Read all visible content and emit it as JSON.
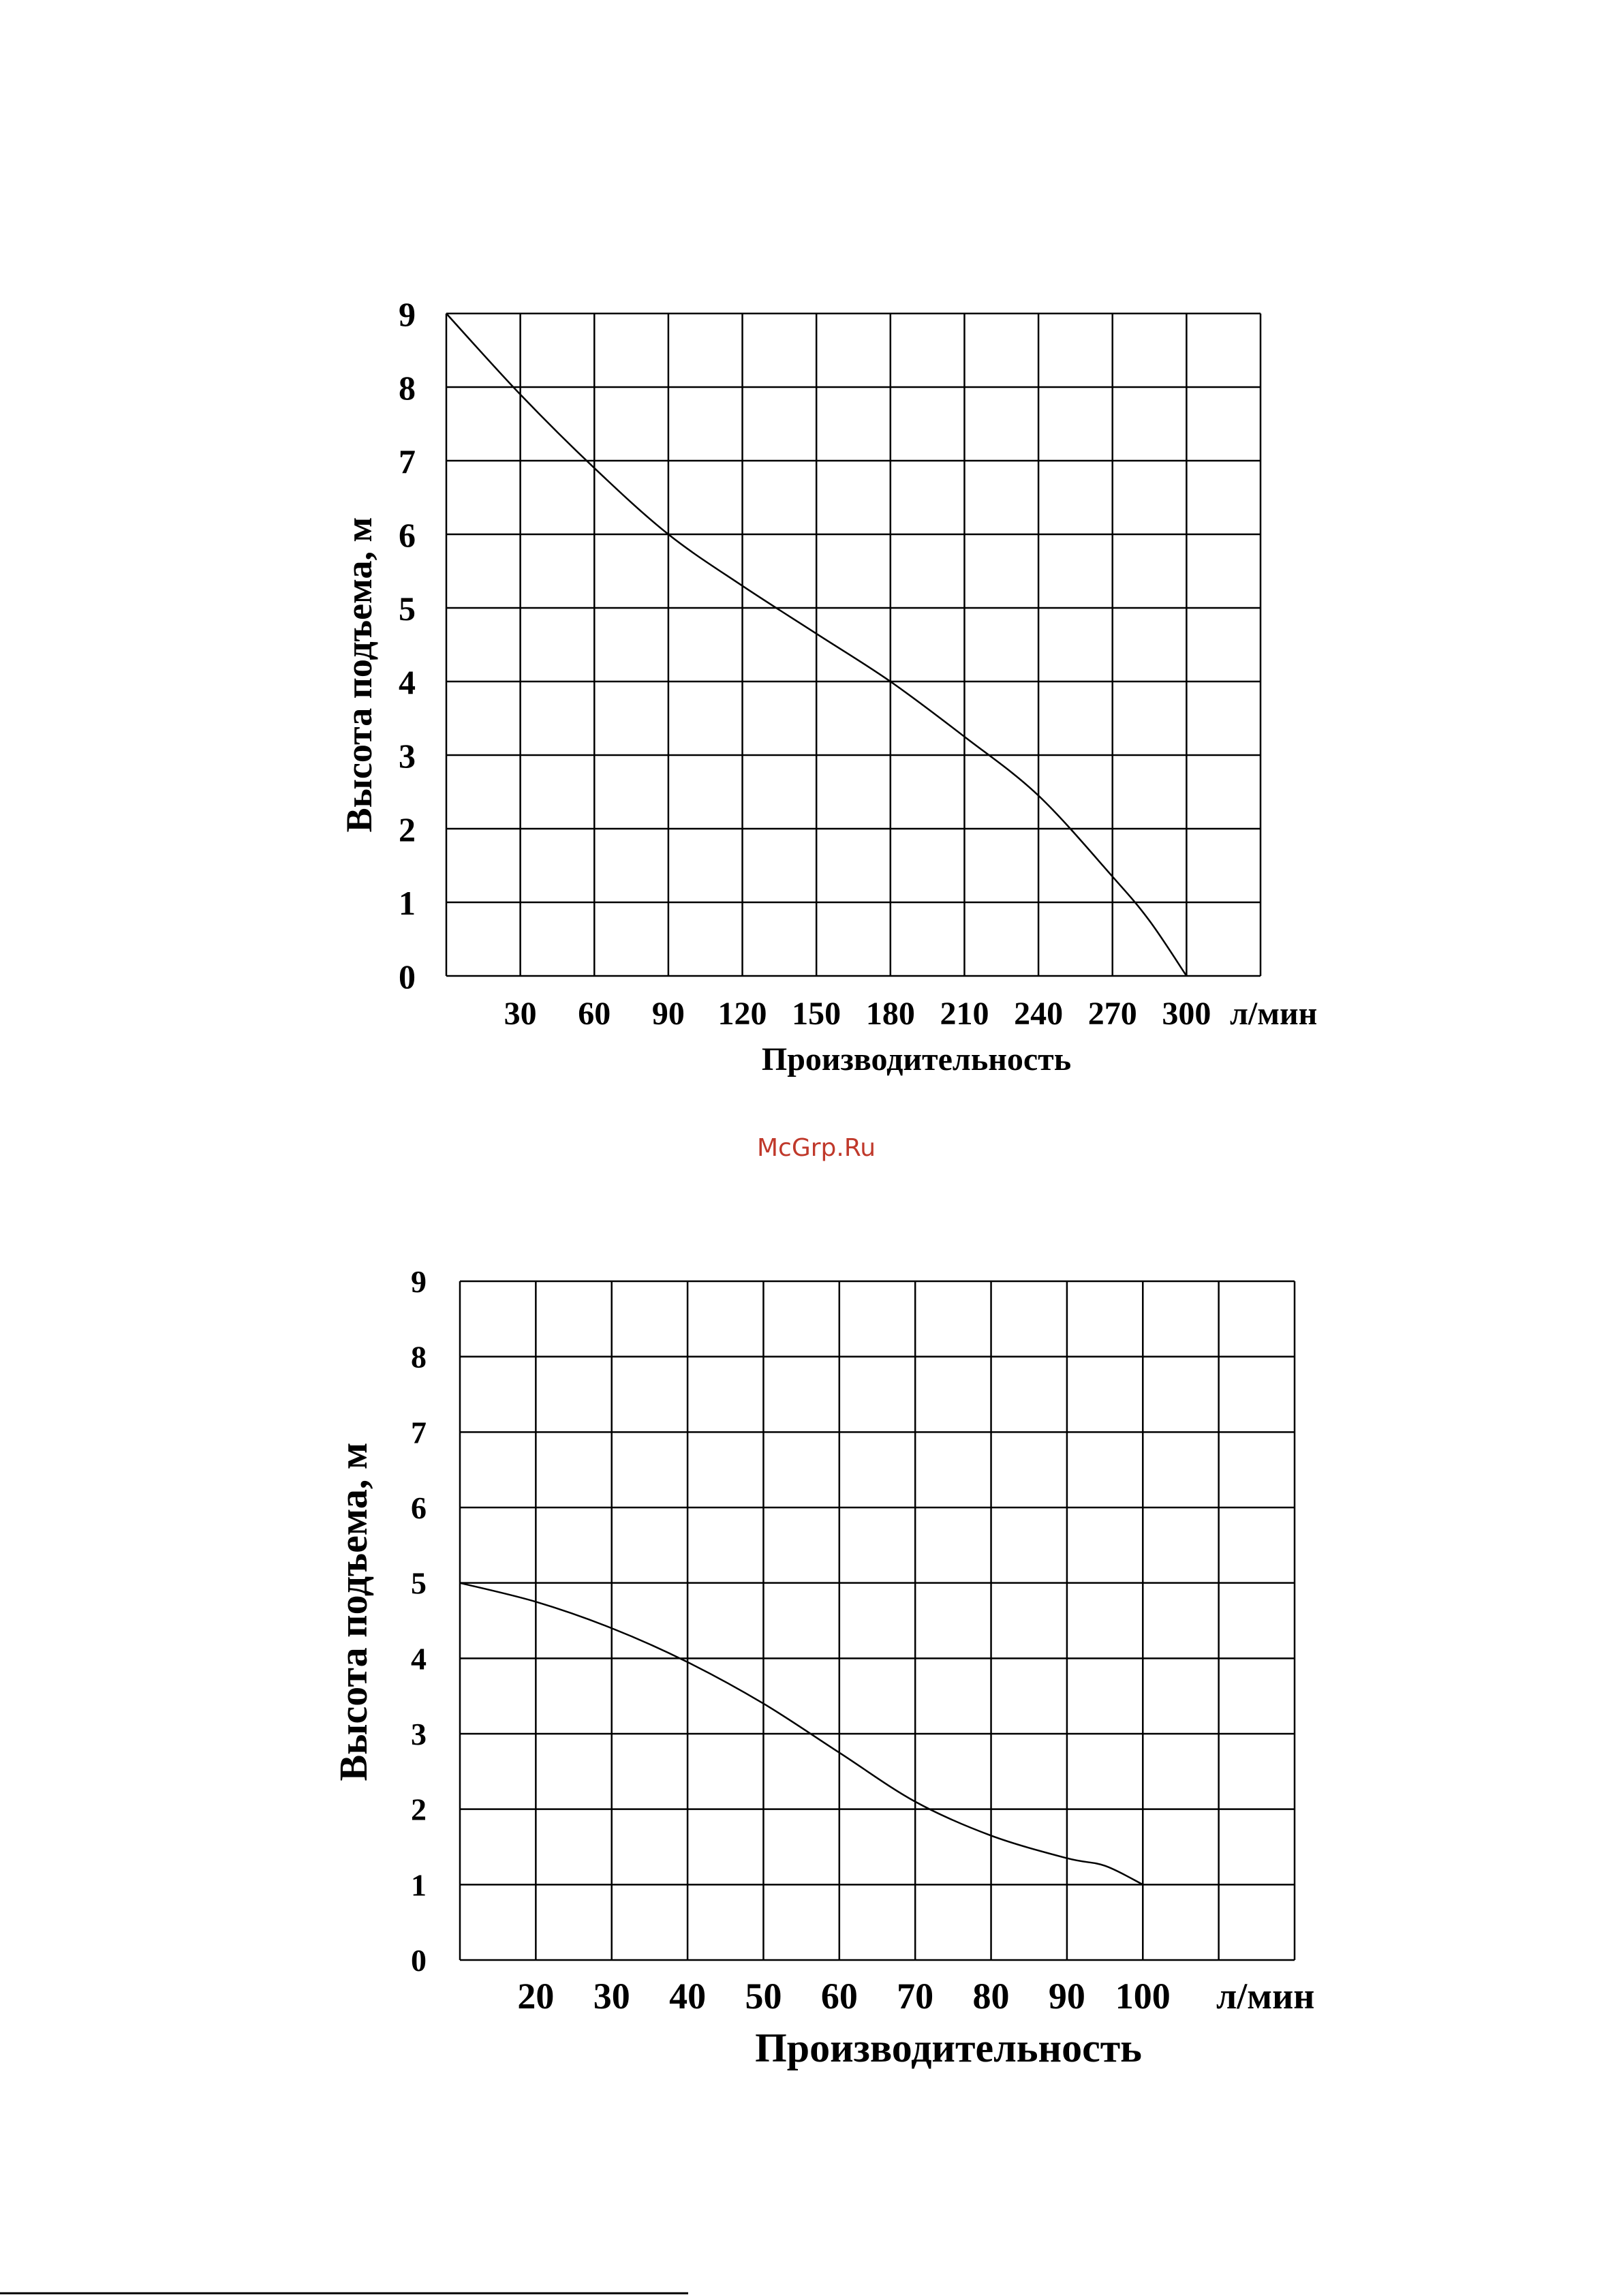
{
  "watermark": "McGrp.Ru",
  "chart_data": [
    {
      "type": "line",
      "xlabel": "Производительность",
      "ylabel": "Высота подъема, м",
      "x_unit": "л/мин",
      "xlim": [
        0,
        330
      ],
      "ylim": [
        0,
        9
      ],
      "x_ticks": [
        30,
        60,
        90,
        120,
        150,
        180,
        210,
        240,
        270,
        300
      ],
      "y_ticks": [
        0,
        1,
        2,
        3,
        4,
        5,
        6,
        7,
        8,
        9
      ],
      "grid": true,
      "series": [
        {
          "name": "Высота подъема",
          "x": [
            0,
            30,
            60,
            90,
            120,
            150,
            180,
            210,
            240,
            270,
            285,
            300
          ],
          "y": [
            9,
            7.9,
            6.9,
            6.0,
            5.3,
            4.65,
            4.0,
            3.25,
            2.45,
            1.35,
            0.75,
            0
          ]
        }
      ]
    },
    {
      "type": "line",
      "xlabel": "Производительность",
      "ylabel": "Высота подъема, м",
      "x_unit": "л/мин",
      "xlim": [
        10,
        120
      ],
      "ylim": [
        0,
        9
      ],
      "x_ticks": [
        20,
        30,
        40,
        50,
        60,
        70,
        80,
        90,
        100
      ],
      "y_ticks": [
        0,
        1,
        2,
        3,
        4,
        5,
        6,
        7,
        8,
        9
      ],
      "grid": true,
      "series": [
        {
          "name": "Высота подъема",
          "x": [
            10,
            20,
            30,
            40,
            50,
            60,
            70,
            80,
            90,
            95,
            100
          ],
          "y": [
            5,
            4.75,
            4.4,
            3.95,
            3.4,
            2.75,
            2.1,
            1.65,
            1.35,
            1.25,
            1.0
          ]
        }
      ]
    }
  ]
}
